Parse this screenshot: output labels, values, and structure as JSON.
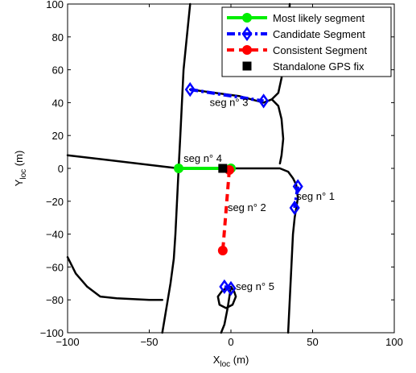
{
  "chart_data": {
    "type": "line",
    "title": "",
    "xlabel": {
      "main": "X",
      "sub": "loc",
      "unit": " (m)"
    },
    "ylabel": {
      "main": "Y",
      "sub": "loc",
      "unit": " (m)"
    },
    "xlim": [
      -100,
      100
    ],
    "ylim": [
      -100,
      100
    ],
    "xticks": [
      -100,
      -50,
      0,
      50,
      100
    ],
    "yticks": [
      -100,
      -80,
      -60,
      -40,
      -20,
      0,
      20,
      40,
      60,
      80,
      100
    ],
    "xtick_labels": [
      "−100",
      "−50",
      "0",
      "50",
      "100"
    ],
    "ytick_labels": [
      "−100",
      "−80",
      "−60",
      "−40",
      "−20",
      "0",
      "20",
      "40",
      "60",
      "80",
      "100"
    ],
    "grid": false,
    "legend_position": "top-right",
    "legend": [
      {
        "label": "Most likely segment",
        "color": "#00ee00",
        "line": "solid",
        "marker": "circle"
      },
      {
        "label": "Candidate Segment",
        "color": "#0000ff",
        "line": "dash-dot",
        "marker": "diamond"
      },
      {
        "label": "Consistent Segment",
        "color": "#ff0000",
        "line": "dashed",
        "marker": "circle"
      },
      {
        "label": "Standalone GPS fix",
        "color": "#000000",
        "line": "none",
        "marker": "square"
      }
    ],
    "road_color": "#000000",
    "roads": [
      [
        [
          -25,
          100
        ],
        [
          -27,
          80
        ],
        [
          -29,
          60
        ],
        [
          -30,
          40
        ],
        [
          -31,
          20
        ],
        [
          -32,
          0
        ],
        [
          -33,
          -20
        ],
        [
          -34,
          -40
        ],
        [
          -35,
          -55
        ],
        [
          -37,
          -70
        ],
        [
          -40,
          -88
        ],
        [
          -42,
          -100
        ]
      ],
      [
        [
          -100,
          8
        ],
        [
          -32,
          0
        ]
      ],
      [
        [
          -32,
          0
        ],
        [
          0,
          0
        ],
        [
          30,
          0
        ],
        [
          35,
          -2
        ],
        [
          38,
          -6
        ],
        [
          40,
          -10
        ],
        [
          41,
          -18
        ],
        [
          40,
          -24
        ],
        [
          39,
          -30
        ],
        [
          38,
          -40
        ],
        [
          37,
          -60
        ],
        [
          36,
          -80
        ],
        [
          35,
          -100
        ]
      ],
      [
        [
          -25,
          48
        ],
        [
          5,
          44
        ],
        [
          20,
          40
        ],
        [
          25,
          42
        ],
        [
          29,
          46
        ],
        [
          31,
          55
        ],
        [
          33,
          70
        ],
        [
          35,
          85
        ],
        [
          36,
          100
        ]
      ],
      [
        [
          25,
          42
        ],
        [
          29,
          38
        ],
        [
          31,
          30
        ],
        [
          32,
          18
        ],
        [
          31,
          8
        ],
        [
          30,
          3
        ]
      ],
      [
        [
          -100,
          -54
        ],
        [
          -95,
          -64
        ],
        [
          -88,
          -72
        ],
        [
          -80,
          -78
        ],
        [
          -70,
          -79
        ],
        [
          -50,
          -80
        ],
        [
          -42,
          -80
        ]
      ],
      [
        [
          0,
          -72
        ],
        [
          -5,
          -74
        ],
        [
          -8,
          -78
        ],
        [
          -7,
          -83
        ],
        [
          -3,
          -85
        ],
        [
          1,
          -83
        ],
        [
          3,
          -78
        ],
        [
          2,
          -75
        ],
        [
          0,
          -72
        ],
        [
          -2,
          -85
        ],
        [
          -4,
          -95
        ],
        [
          -6,
          -100
        ]
      ]
    ],
    "series": [
      {
        "name": "Most likely segment",
        "color": "#00ee00",
        "line": "solid",
        "marker": "circle",
        "x": [
          -32,
          0
        ],
        "y": [
          0,
          0
        ]
      },
      {
        "name": "Candidate Segment",
        "color": "#0000ff",
        "line": "dash-dot",
        "marker": "diamond",
        "x": [
          -25,
          20
        ],
        "y": [
          48,
          41
        ]
      },
      {
        "name": "Candidate Segment",
        "color": "#0000ff",
        "line": "dash-dot",
        "marker": "diamond",
        "x": [
          41,
          39
        ],
        "y": [
          -11,
          -24
        ]
      },
      {
        "name": "Candidate Segment",
        "color": "#0000ff",
        "line": "dash-dot",
        "marker": "diamond",
        "x": [
          -4,
          0
        ],
        "y": [
          -72,
          -73
        ]
      },
      {
        "name": "Consistent Segment",
        "color": "#ff0000",
        "line": "dashed",
        "marker": "circle",
        "x": [
          -1,
          -5
        ],
        "y": [
          -1,
          -50
        ]
      },
      {
        "name": "Standalone GPS fix",
        "color": "#000000",
        "line": "none",
        "marker": "square",
        "x": [
          -5
        ],
        "y": [
          0
        ]
      }
    ],
    "annotations": [
      {
        "text": "seg n° 3",
        "x": -13,
        "y": 38
      },
      {
        "text": "seg n° 4",
        "x": -29,
        "y": 4
      },
      {
        "text": "seg n° 1",
        "x": 40,
        "y": -19
      },
      {
        "text": "seg n° 2",
        "x": -2,
        "y": -26
      },
      {
        "text": "seg n° 5",
        "x": 3,
        "y": -74
      }
    ]
  }
}
